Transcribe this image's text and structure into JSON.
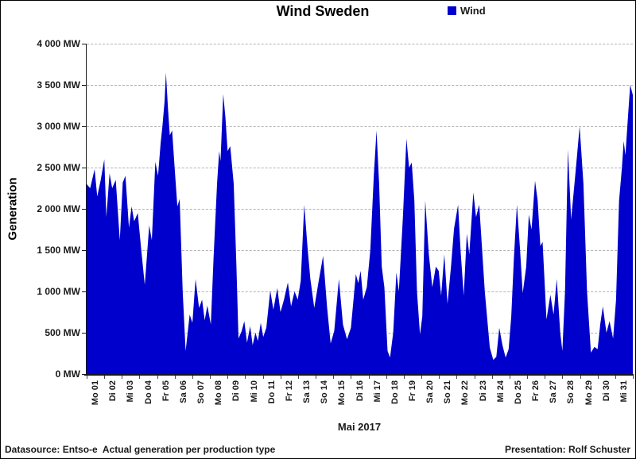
{
  "title": "Wind Sweden",
  "legend": {
    "label": "Wind",
    "color": "#0000CC"
  },
  "y_axis": {
    "title": "Generation",
    "tick_labels": [
      "4 000 MW",
      "3 500 MW",
      "3 000 MW",
      "2 500 MW",
      "2 000 MW",
      "1 500 MW",
      "1 000 MW",
      "500 MW",
      "0 MW"
    ]
  },
  "x_axis": {
    "title": "Mai 2017",
    "tick_labels": [
      "Mo 01",
      "Di 02",
      "Mi 03",
      "Do 04",
      "Fr 05",
      "Sa 06",
      "So 07",
      "Mo 08",
      "Di 09",
      "Mi 10",
      "Do 11",
      "Fr 12",
      "Sa 13",
      "So 14",
      "Mo 15",
      "Di 16",
      "Mi 17",
      "Do 18",
      "Fr 19",
      "Sa 20",
      "So 21",
      "Mo 22",
      "Di 23",
      "Mi 24",
      "Do 25",
      "Fr 26",
      "Sa 27",
      "So 28",
      "Mo 29",
      "Di 30",
      "Mi 31"
    ]
  },
  "footer": {
    "left": "Datasource: Entso-e  Actual generation per production type",
    "right": "Presentation: Rolf Schuster"
  },
  "chart_data": {
    "type": "area",
    "title": "Wind Sweden",
    "xlabel": "Mai 2017",
    "ylabel": "Generation",
    "unit": "MW",
    "xlim_days": [
      0,
      31
    ],
    "ylim": [
      0,
      4000
    ],
    "y_step": 500,
    "grid": "horizontal dashed every 500 MW",
    "legend_position": "top-right",
    "series": [
      {
        "name": "Wind",
        "color": "#0000CC",
        "x_unit": "day of May 2017 (fractional, 0 = May 1 00:00)",
        "points": [
          [
            0,
            2300
          ],
          [
            0.2,
            2250
          ],
          [
            0.45,
            2480
          ],
          [
            0.6,
            2150
          ],
          [
            0.8,
            2350
          ],
          [
            1,
            2600
          ],
          [
            1.12,
            1900
          ],
          [
            1.3,
            2430
          ],
          [
            1.45,
            2250
          ],
          [
            1.65,
            2350
          ],
          [
            1.88,
            1620
          ],
          [
            2.05,
            2320
          ],
          [
            2.2,
            2400
          ],
          [
            2.4,
            1770
          ],
          [
            2.55,
            2030
          ],
          [
            2.7,
            1850
          ],
          [
            2.9,
            1950
          ],
          [
            3.1,
            1500
          ],
          [
            3.3,
            1080
          ],
          [
            3.55,
            1800
          ],
          [
            3.7,
            1620
          ],
          [
            3.9,
            2570
          ],
          [
            4.05,
            2400
          ],
          [
            4.2,
            2800
          ],
          [
            4.3,
            3000
          ],
          [
            4.42,
            3300
          ],
          [
            4.5,
            3650
          ],
          [
            4.62,
            3200
          ],
          [
            4.72,
            2890
          ],
          [
            4.85,
            2950
          ],
          [
            5,
            2480
          ],
          [
            5.15,
            2030
          ],
          [
            5.28,
            2120
          ],
          [
            5.45,
            1000
          ],
          [
            5.62,
            280
          ],
          [
            5.85,
            720
          ],
          [
            6,
            620
          ],
          [
            6.18,
            1150
          ],
          [
            6.38,
            800
          ],
          [
            6.55,
            900
          ],
          [
            6.7,
            650
          ],
          [
            6.85,
            830
          ],
          [
            7.05,
            600
          ],
          [
            7.2,
            1400
          ],
          [
            7.4,
            2300
          ],
          [
            7.52,
            2700
          ],
          [
            7.6,
            2580
          ],
          [
            7.75,
            3390
          ],
          [
            7.88,
            3100
          ],
          [
            8,
            2700
          ],
          [
            8.15,
            2760
          ],
          [
            8.35,
            2300
          ],
          [
            8.5,
            1300
          ],
          [
            8.62,
            430
          ],
          [
            8.8,
            520
          ],
          [
            8.95,
            640
          ],
          [
            9.1,
            380
          ],
          [
            9.28,
            580
          ],
          [
            9.42,
            350
          ],
          [
            9.58,
            500
          ],
          [
            9.72,
            400
          ],
          [
            9.88,
            620
          ],
          [
            10.02,
            450
          ],
          [
            10.2,
            560
          ],
          [
            10.42,
            1010
          ],
          [
            10.6,
            780
          ],
          [
            10.82,
            1040
          ],
          [
            11,
            750
          ],
          [
            11.2,
            900
          ],
          [
            11.42,
            1110
          ],
          [
            11.6,
            820
          ],
          [
            11.8,
            1000
          ],
          [
            11.98,
            900
          ],
          [
            12.15,
            1130
          ],
          [
            12.35,
            2050
          ],
          [
            12.55,
            1500
          ],
          [
            12.7,
            1150
          ],
          [
            12.92,
            800
          ],
          [
            13.15,
            1100
          ],
          [
            13.42,
            1430
          ],
          [
            13.65,
            800
          ],
          [
            13.85,
            370
          ],
          [
            14.05,
            520
          ],
          [
            14.32,
            1150
          ],
          [
            14.55,
            600
          ],
          [
            14.78,
            420
          ],
          [
            15,
            560
          ],
          [
            15.28,
            1210
          ],
          [
            15.42,
            1100
          ],
          [
            15.55,
            1250
          ],
          [
            15.7,
            900
          ],
          [
            15.9,
            1050
          ],
          [
            16.1,
            1500
          ],
          [
            16.3,
            2400
          ],
          [
            16.45,
            2950
          ],
          [
            16.6,
            2300
          ],
          [
            16.75,
            1300
          ],
          [
            16.9,
            1050
          ],
          [
            17.08,
            280
          ],
          [
            17.22,
            200
          ],
          [
            17.4,
            500
          ],
          [
            17.58,
            1230
          ],
          [
            17.72,
            1000
          ],
          [
            17.95,
            1900
          ],
          [
            18.15,
            2850
          ],
          [
            18.3,
            2500
          ],
          [
            18.45,
            2560
          ],
          [
            18.6,
            2100
          ],
          [
            18.75,
            1000
          ],
          [
            18.92,
            480
          ],
          [
            19.05,
            700
          ],
          [
            19.22,
            2100
          ],
          [
            19.42,
            1450
          ],
          [
            19.62,
            1050
          ],
          [
            19.82,
            1300
          ],
          [
            19.98,
            1250
          ],
          [
            20.12,
            950
          ],
          [
            20.3,
            1450
          ],
          [
            20.48,
            850
          ],
          [
            20.68,
            1300
          ],
          [
            20.85,
            1760
          ],
          [
            21.08,
            2050
          ],
          [
            21.22,
            1500
          ],
          [
            21.4,
            950
          ],
          [
            21.58,
            1700
          ],
          [
            21.72,
            1450
          ],
          [
            21.95,
            2200
          ],
          [
            22.1,
            1900
          ],
          [
            22.28,
            2050
          ],
          [
            22.6,
            1000
          ],
          [
            22.88,
            320
          ],
          [
            23.08,
            170
          ],
          [
            23.25,
            210
          ],
          [
            23.42,
            560
          ],
          [
            23.6,
            350
          ],
          [
            23.78,
            200
          ],
          [
            23.95,
            300
          ],
          [
            24.1,
            700
          ],
          [
            24.25,
            1400
          ],
          [
            24.42,
            2050
          ],
          [
            24.6,
            1500
          ],
          [
            24.75,
            980
          ],
          [
            24.95,
            1300
          ],
          [
            25.1,
            1930
          ],
          [
            25.25,
            1750
          ],
          [
            25.45,
            2340
          ],
          [
            25.6,
            2100
          ],
          [
            25.75,
            1550
          ],
          [
            25.88,
            1600
          ],
          [
            26.1,
            660
          ],
          [
            26.32,
            960
          ],
          [
            26.5,
            720
          ],
          [
            26.68,
            1150
          ],
          [
            26.88,
            500
          ],
          [
            27,
            280
          ],
          [
            27.15,
            1000
          ],
          [
            27.32,
            2720
          ],
          [
            27.5,
            1870
          ],
          [
            27.75,
            2450
          ],
          [
            27.98,
            3000
          ],
          [
            28.2,
            2300
          ],
          [
            28.4,
            1000
          ],
          [
            28.62,
            260
          ],
          [
            28.82,
            330
          ],
          [
            29,
            300
          ],
          [
            29.15,
            600
          ],
          [
            29.3,
            820
          ],
          [
            29.5,
            500
          ],
          [
            29.68,
            640
          ],
          [
            29.88,
            430
          ],
          [
            30.05,
            900
          ],
          [
            30.22,
            2100
          ],
          [
            30.38,
            2500
          ],
          [
            30.48,
            2820
          ],
          [
            30.58,
            2650
          ],
          [
            30.72,
            3100
          ],
          [
            30.85,
            3500
          ],
          [
            31,
            3380
          ]
        ]
      }
    ]
  }
}
